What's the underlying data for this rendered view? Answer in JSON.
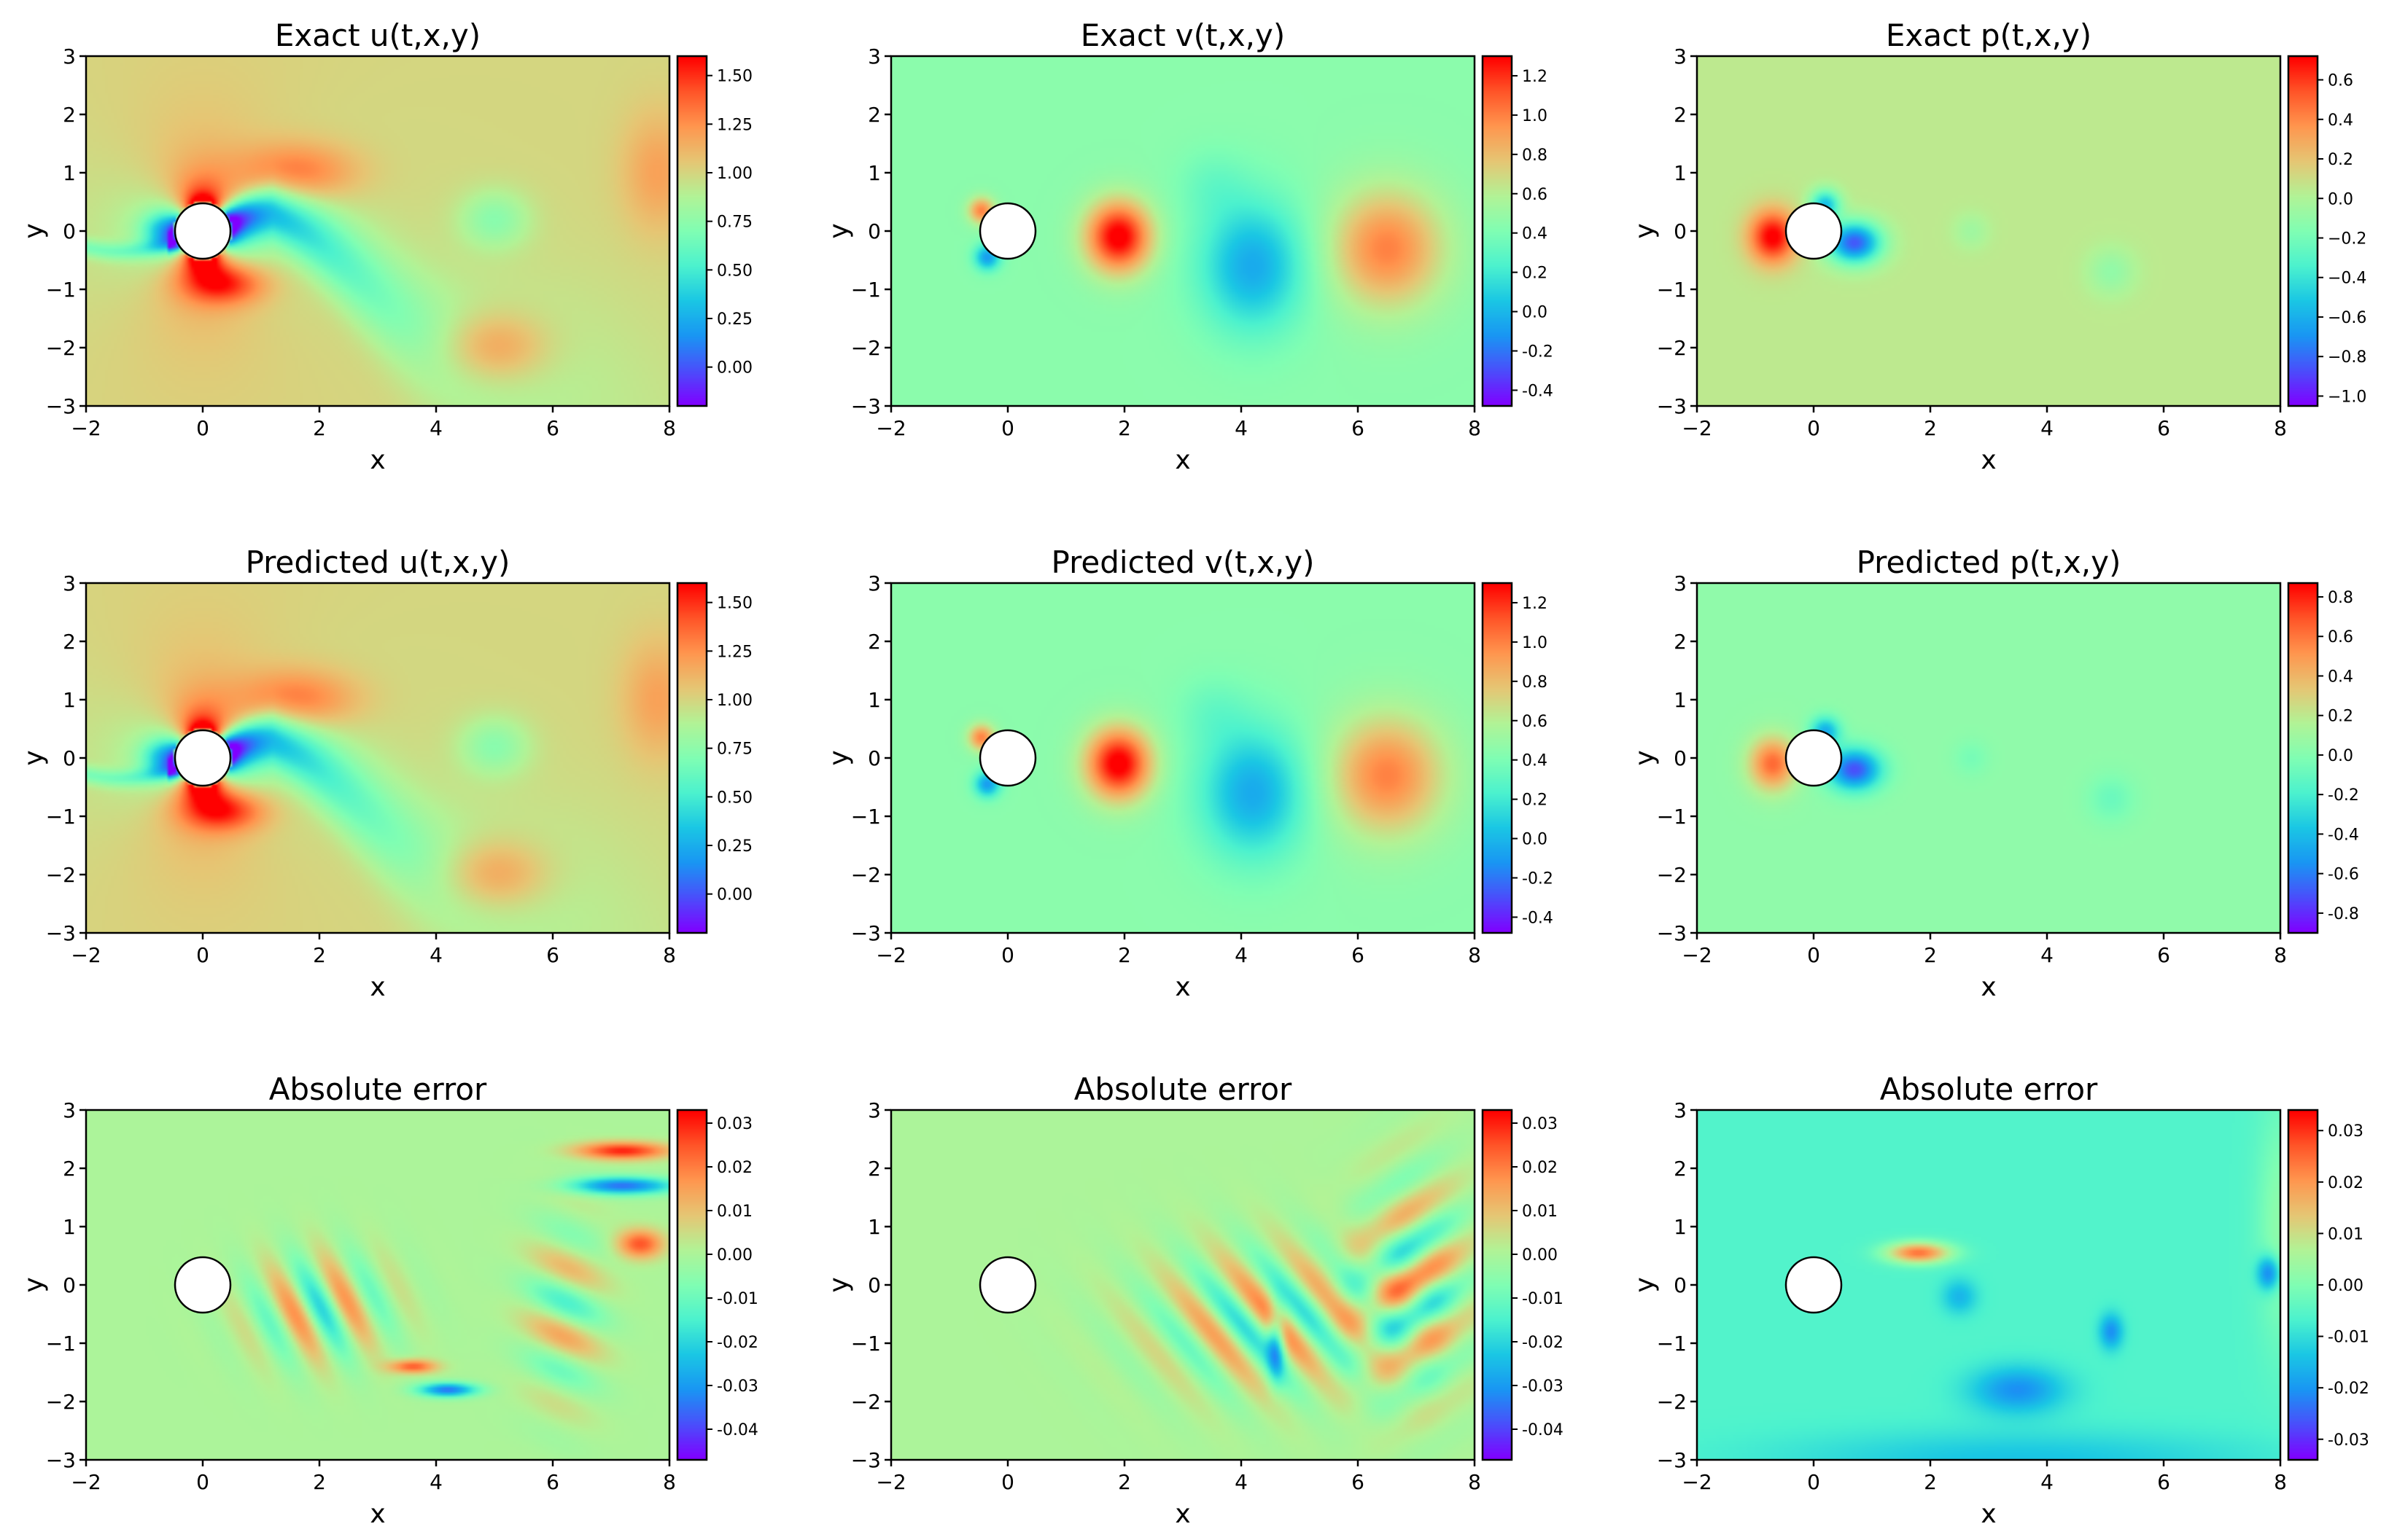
{
  "figure": {
    "colormap": [
      "#8000ff",
      "#4a4ffb",
      "#1996f3",
      "#1ac7e4",
      "#4cf2ce",
      "#80feb3",
      "#b2f396",
      "#e6c674",
      "#ff964f",
      "#ff5528",
      "#ff0000"
    ],
    "cylinder": {
      "center": [
        0,
        0
      ],
      "radius": 0.5
    }
  },
  "chart_data": [
    {
      "type": "heatmap",
      "title": "Exact u(t,x,y)",
      "xlabel": "x",
      "ylabel": "y",
      "xlim": [
        -2,
        8
      ],
      "ylim": [
        -3,
        3
      ],
      "xticks": [
        -2,
        0,
        2,
        4,
        6,
        8
      ],
      "yticks": [
        -3,
        -2,
        -1,
        0,
        1,
        2,
        3
      ],
      "colorbar": {
        "min": -0.2,
        "max": 1.6,
        "ticks": [
          0.0,
          0.25,
          0.5,
          0.75,
          1.0,
          1.25,
          1.5
        ],
        "labels": [
          "0.00",
          "0.25",
          "0.50",
          "0.75",
          "1.00",
          "1.25",
          "1.50"
        ]
      },
      "field": "u"
    },
    {
      "type": "heatmap",
      "title": "Exact v(t,x,y)",
      "xlabel": "x",
      "ylabel": "y",
      "xlim": [
        -2,
        8
      ],
      "ylim": [
        -3,
        3
      ],
      "xticks": [
        -2,
        0,
        2,
        4,
        6,
        8
      ],
      "yticks": [
        -3,
        -2,
        -1,
        0,
        1,
        2,
        3
      ],
      "colorbar": {
        "min": -0.48,
        "max": 1.3,
        "ticks": [
          -0.4,
          -0.2,
          0.0,
          0.2,
          0.4,
          0.6,
          0.8,
          1.0,
          1.2
        ],
        "labels": [
          "-0.4",
          "-0.2",
          "0.0",
          "0.2",
          "0.4",
          "0.6",
          "0.8",
          "1.0",
          "1.2"
        ]
      },
      "field": "v"
    },
    {
      "type": "heatmap",
      "title": "Exact p(t,x,y)",
      "xlabel": "x",
      "ylabel": "y",
      "xlim": [
        -2,
        8
      ],
      "ylim": [
        -3,
        3
      ],
      "xticks": [
        -2,
        0,
        2,
        4,
        6,
        8
      ],
      "yticks": [
        -3,
        -2,
        -1,
        0,
        1,
        2,
        3
      ],
      "colorbar": {
        "min": -1.05,
        "max": 0.72,
        "ticks": [
          -1.0,
          -0.8,
          -0.6,
          -0.4,
          -0.2,
          0.0,
          0.2,
          0.4,
          0.6
        ],
        "labels": [
          "−1.0",
          "−0.8",
          "−0.6",
          "−0.4",
          "−0.2",
          "0.0",
          "0.2",
          "0.4",
          "0.6"
        ]
      },
      "field": "p"
    },
    {
      "type": "heatmap",
      "title": "Predicted u(t,x,y)",
      "xlabel": "x",
      "ylabel": "y",
      "xlim": [
        -2,
        8
      ],
      "ylim": [
        -3,
        3
      ],
      "xticks": [
        -2,
        0,
        2,
        4,
        6,
        8
      ],
      "yticks": [
        -3,
        -2,
        -1,
        0,
        1,
        2,
        3
      ],
      "colorbar": {
        "min": -0.2,
        "max": 1.6,
        "ticks": [
          0.0,
          0.25,
          0.5,
          0.75,
          1.0,
          1.25,
          1.5
        ],
        "labels": [
          "0.00",
          "0.25",
          "0.50",
          "0.75",
          "1.00",
          "1.25",
          "1.50"
        ]
      },
      "field": "u"
    },
    {
      "type": "heatmap",
      "title": "Predicted v(t,x,y)",
      "xlabel": "x",
      "ylabel": "y",
      "xlim": [
        -2,
        8
      ],
      "ylim": [
        -3,
        3
      ],
      "xticks": [
        -2,
        0,
        2,
        4,
        6,
        8
      ],
      "yticks": [
        -3,
        -2,
        -1,
        0,
        1,
        2,
        3
      ],
      "colorbar": {
        "min": -0.48,
        "max": 1.3,
        "ticks": [
          -0.4,
          -0.2,
          0.0,
          0.2,
          0.4,
          0.6,
          0.8,
          1.0,
          1.2
        ],
        "labels": [
          "-0.4",
          "-0.2",
          "0.0",
          "0.2",
          "0.4",
          "0.6",
          "0.8",
          "1.0",
          "1.2"
        ]
      },
      "field": "v"
    },
    {
      "type": "heatmap",
      "title": "Predicted p(t,x,y)",
      "xlabel": "x",
      "ylabel": "y",
      "xlim": [
        -2,
        8
      ],
      "ylim": [
        -3,
        3
      ],
      "xticks": [
        -2,
        0,
        2,
        4,
        6,
        8
      ],
      "yticks": [
        -3,
        -2,
        -1,
        0,
        1,
        2,
        3
      ],
      "colorbar": {
        "min": -0.9,
        "max": 0.87,
        "ticks": [
          -0.8,
          -0.6,
          -0.4,
          -0.2,
          0.0,
          0.2,
          0.4,
          0.6,
          0.8
        ],
        "labels": [
          "-0.8",
          "-0.6",
          "-0.4",
          "-0.2",
          "0.0",
          "0.2",
          "0.4",
          "0.6",
          "0.8"
        ]
      },
      "field": "p"
    },
    {
      "type": "heatmap",
      "title": "Absolute error",
      "xlabel": "x",
      "ylabel": "y",
      "xlim": [
        -2,
        8
      ],
      "ylim": [
        -3,
        3
      ],
      "xticks": [
        -2,
        0,
        2,
        4,
        6,
        8
      ],
      "yticks": [
        -3,
        -2,
        -1,
        0,
        1,
        2,
        3
      ],
      "colorbar": {
        "min": -0.047,
        "max": 0.033,
        "ticks": [
          -0.04,
          -0.03,
          -0.02,
          -0.01,
          0.0,
          0.01,
          0.02,
          0.03
        ],
        "labels": [
          "-0.04",
          "-0.03",
          "-0.02",
          "-0.01",
          "0.00",
          "0.01",
          "0.02",
          "0.03"
        ]
      },
      "field": "eu"
    },
    {
      "type": "heatmap",
      "title": "Absolute error",
      "xlabel": "x",
      "ylabel": "y",
      "xlim": [
        -2,
        8
      ],
      "ylim": [
        -3,
        3
      ],
      "xticks": [
        -2,
        0,
        2,
        4,
        6,
        8
      ],
      "yticks": [
        -3,
        -2,
        -1,
        0,
        1,
        2,
        3
      ],
      "colorbar": {
        "min": -0.047,
        "max": 0.033,
        "ticks": [
          -0.04,
          -0.03,
          -0.02,
          -0.01,
          0.0,
          0.01,
          0.02,
          0.03
        ],
        "labels": [
          "-0.04",
          "-0.03",
          "-0.02",
          "-0.01",
          "0.00",
          "0.01",
          "0.02",
          "0.03"
        ]
      },
      "field": "ev"
    },
    {
      "type": "heatmap",
      "title": "Absolute error",
      "xlabel": "x",
      "ylabel": "y",
      "xlim": [
        -2,
        8
      ],
      "ylim": [
        -3,
        3
      ],
      "xticks": [
        -2,
        0,
        2,
        4,
        6,
        8
      ],
      "yticks": [
        -3,
        -2,
        -1,
        0,
        1,
        2,
        3
      ],
      "colorbar": {
        "min": -0.034,
        "max": 0.034,
        "ticks": [
          -0.03,
          -0.02,
          -0.01,
          0.0,
          0.01,
          0.02,
          0.03
        ],
        "labels": [
          "-0.03",
          "-0.02",
          "-0.01",
          "0.00",
          "0.01",
          "0.02",
          "0.03"
        ]
      },
      "field": "ep"
    }
  ]
}
